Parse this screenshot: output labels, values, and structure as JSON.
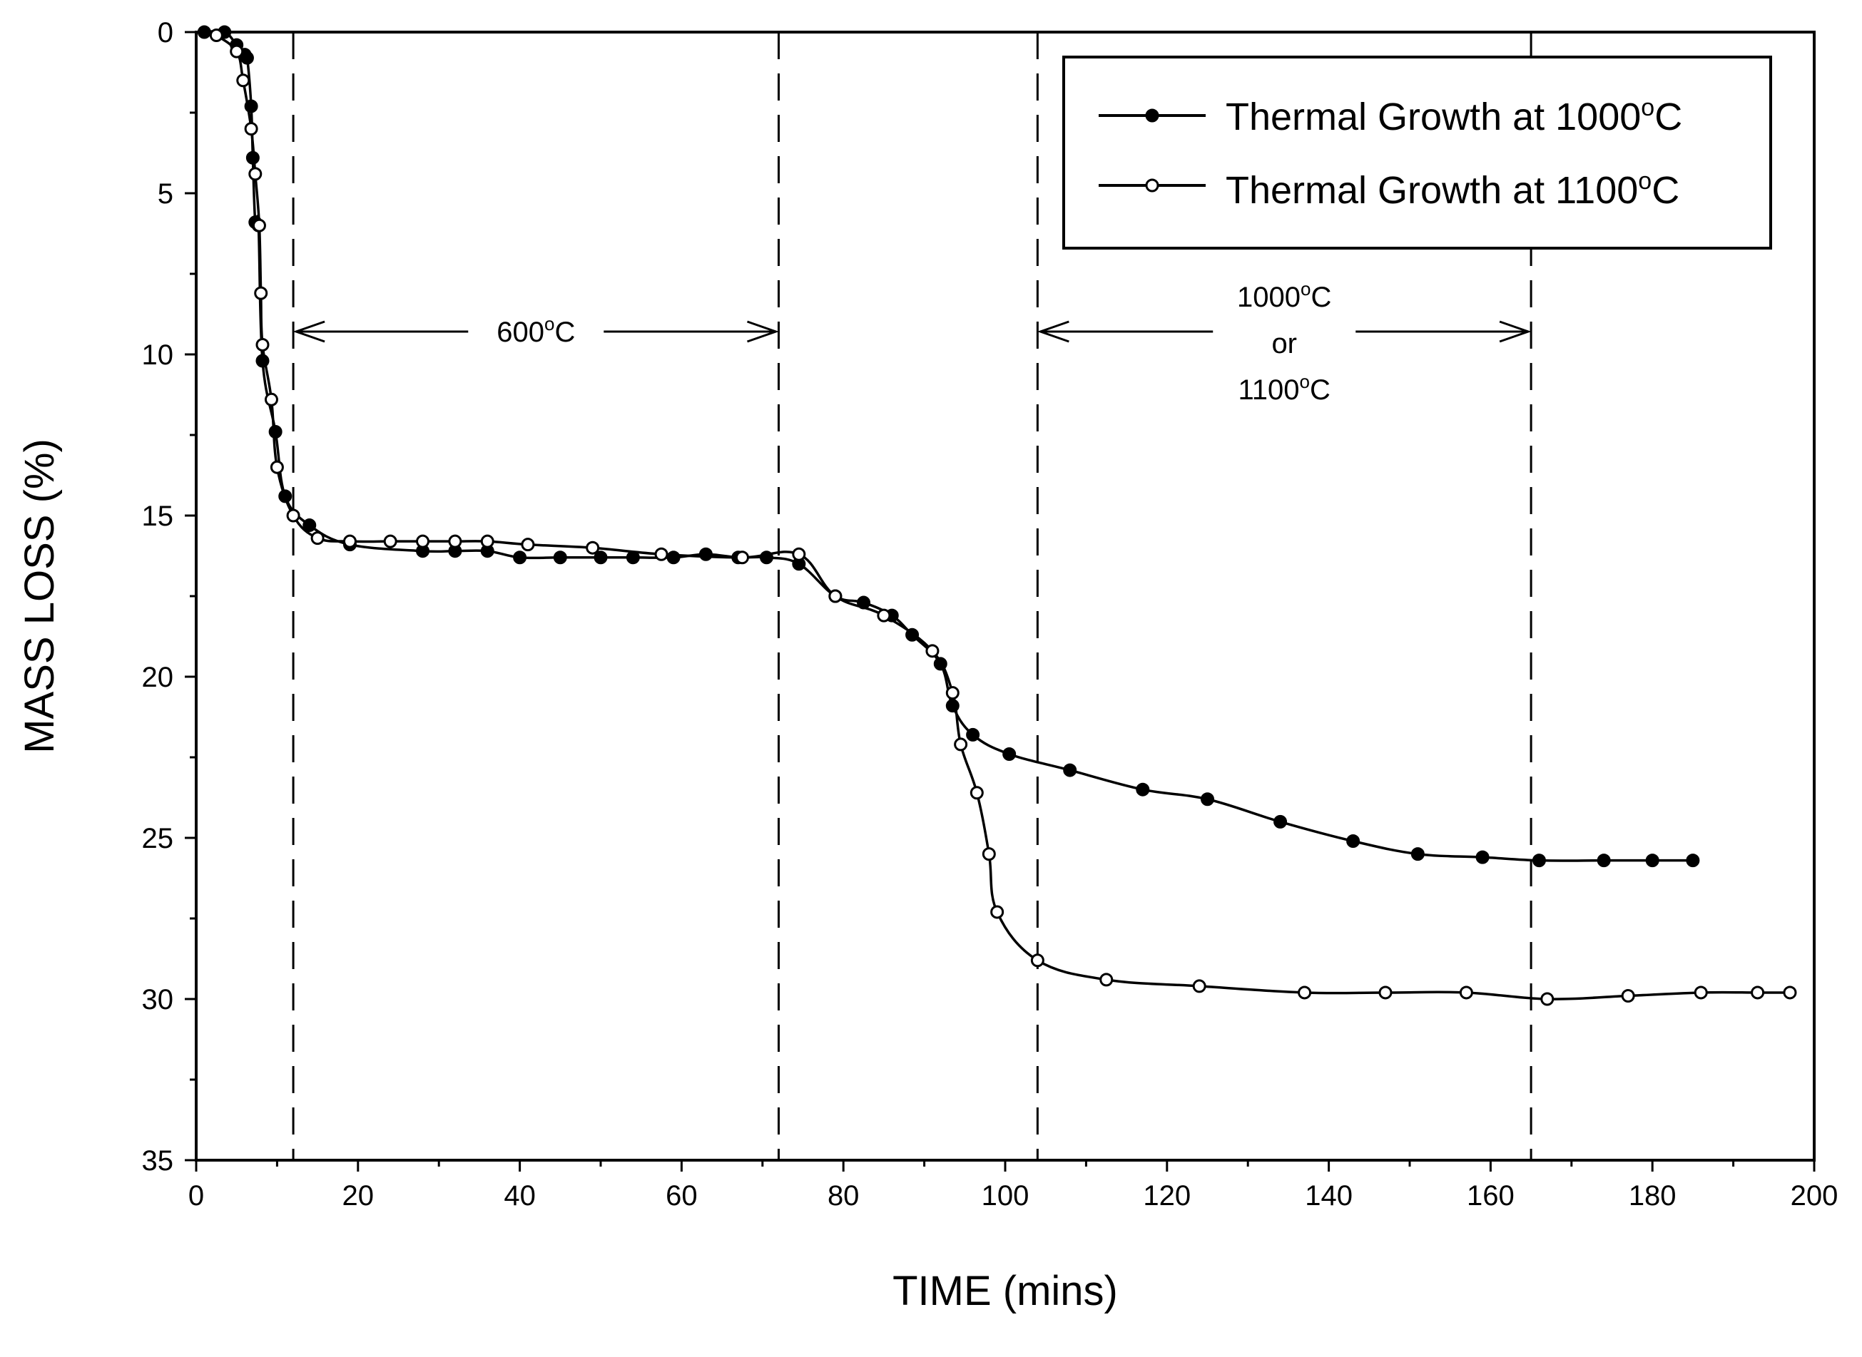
{
  "chart_data": {
    "type": "line",
    "xlabel": "TIME (mins)",
    "ylabel": "MASS LOSS (%)",
    "xlim": [
      0,
      200
    ],
    "ylim": [
      0,
      35
    ],
    "y_inverted": true,
    "xticks": [
      "0",
      "20",
      "40",
      "60",
      "80",
      "100",
      "120",
      "140",
      "160",
      "180",
      "200"
    ],
    "yticks": [
      "0",
      "5",
      "10",
      "15",
      "20",
      "25",
      "30",
      "35"
    ],
    "grid": false,
    "legend_position": "top-right",
    "series": [
      {
        "name": "Thermal Growth at 1000",
        "name_sup": "o",
        "name_suffix": "C",
        "marker": "filled-circle",
        "points": [
          [
            1,
            0
          ],
          [
            3.5,
            0
          ],
          [
            5,
            0.4
          ],
          [
            6,
            0.7
          ],
          [
            6.3,
            0.8
          ],
          [
            6.8,
            2.3
          ],
          [
            7,
            3.9
          ],
          [
            7.3,
            5.9
          ],
          [
            7.7,
            6
          ],
          [
            8.2,
            10.2
          ],
          [
            9.8,
            12.4
          ],
          [
            11,
            14.4
          ],
          [
            14,
            15.3
          ],
          [
            19,
            15.9
          ],
          [
            28,
            16.1
          ],
          [
            32,
            16.1
          ],
          [
            36,
            16.1
          ],
          [
            40,
            16.3
          ],
          [
            45,
            16.3
          ],
          [
            50,
            16.3
          ],
          [
            54,
            16.3
          ],
          [
            59,
            16.3
          ],
          [
            63,
            16.2
          ],
          [
            67,
            16.3
          ],
          [
            70.5,
            16.3
          ],
          [
            74.5,
            16.5
          ],
          [
            79,
            17.5
          ],
          [
            82.5,
            17.7
          ],
          [
            86,
            18.1
          ],
          [
            88.5,
            18.7
          ],
          [
            92,
            19.6
          ],
          [
            93.5,
            20.9
          ],
          [
            96,
            21.8
          ],
          [
            100.5,
            22.4
          ],
          [
            108,
            22.9
          ],
          [
            117,
            23.5
          ],
          [
            125,
            23.8
          ],
          [
            134,
            24.5
          ],
          [
            143,
            25.1
          ],
          [
            151,
            25.5
          ],
          [
            159,
            25.6
          ],
          [
            166,
            25.7
          ],
          [
            174,
            25.7
          ],
          [
            180,
            25.7
          ],
          [
            185,
            25.7
          ]
        ]
      },
      {
        "name": "Thermal Growth at 1100",
        "name_sup": "o",
        "name_suffix": "C",
        "marker": "open-circle",
        "points": [
          [
            2.5,
            0.1
          ],
          [
            5,
            0.6
          ],
          [
            5.8,
            1.5
          ],
          [
            6.8,
            3
          ],
          [
            7.3,
            4.4
          ],
          [
            7.8,
            6
          ],
          [
            8,
            8.1
          ],
          [
            8.2,
            9.7
          ],
          [
            9.3,
            11.4
          ],
          [
            10,
            13.5
          ],
          [
            12,
            15
          ],
          [
            15,
            15.7
          ],
          [
            19,
            15.8
          ],
          [
            24,
            15.8
          ],
          [
            28,
            15.8
          ],
          [
            32,
            15.8
          ],
          [
            36,
            15.8
          ],
          [
            41,
            15.9
          ],
          [
            49,
            16
          ],
          [
            57.5,
            16.2
          ],
          [
            67.5,
            16.3
          ],
          [
            74.5,
            16.2
          ],
          [
            79,
            17.5
          ],
          [
            85,
            18.1
          ],
          [
            91,
            19.2
          ],
          [
            93.5,
            20.5
          ],
          [
            94.5,
            22.1
          ],
          [
            96.5,
            23.6
          ],
          [
            98,
            25.5
          ],
          [
            99,
            27.3
          ],
          [
            104,
            28.8
          ],
          [
            112.5,
            29.4
          ],
          [
            124,
            29.6
          ],
          [
            137,
            29.8
          ],
          [
            147,
            29.8
          ],
          [
            157,
            29.8
          ],
          [
            167,
            30
          ],
          [
            177,
            29.9
          ],
          [
            186,
            29.8
          ],
          [
            193,
            29.8
          ],
          [
            197,
            29.8
          ]
        ]
      }
    ],
    "vertical_lines_x": [
      12,
      72,
      104,
      165
    ],
    "annotations": [
      {
        "label": "600",
        "sup": "o",
        "suffix": "C",
        "from_x": 12,
        "to_x": 72
      },
      {
        "label_line1": "1000",
        "label_line1_sup": "o",
        "label_line1_suffix": "C",
        "label_line2": "or",
        "label_line3": "1100",
        "label_line3_sup": "o",
        "label_line3_suffix": "C",
        "from_x": 104,
        "to_x": 165
      }
    ]
  }
}
